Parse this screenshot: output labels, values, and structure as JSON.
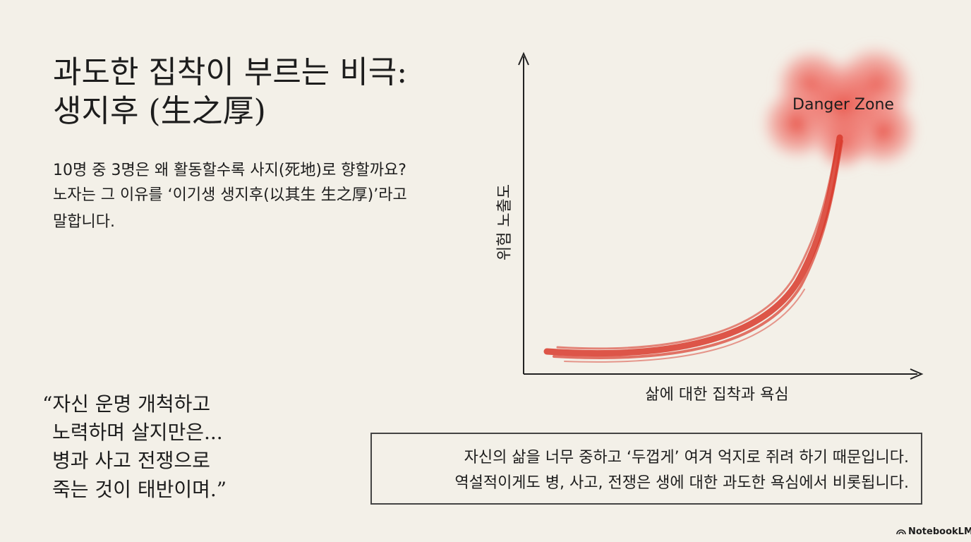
{
  "title": {
    "lines": [
      "과도한 집착이 부르는 비극:",
      "생지후 (生之厚)"
    ]
  },
  "body": {
    "lines": [
      "10명 중 3명은 왜 활동할수록 사지(死地)로 향할까요?",
      "노자는 그 이유를 ‘이기생 생지후(以其生 生之厚)’라고",
      "말합니다."
    ]
  },
  "quote": {
    "lines": [
      "“자신 운명 개척하고",
      "노력하며 살지만은...",
      "병과 사고 전쟁으로",
      "죽는 것이 태반이며.”"
    ]
  },
  "diagram": {
    "y_label": "위험 노출도",
    "x_label": "삶에 대한 집착과 욕심",
    "annotation": "Danger Zone"
  },
  "callout": {
    "lines": [
      "자신의 삶을 너무 중하고 ‘두껍게’ 여겨 억지로 쥐려 하기 때문입니다.",
      "역설적이게도 병, 사고, 전쟁은 생에 대한 과도한 욕심에서 비롯됩니다."
    ]
  },
  "footer": {
    "brand": "NotebookLM"
  }
}
